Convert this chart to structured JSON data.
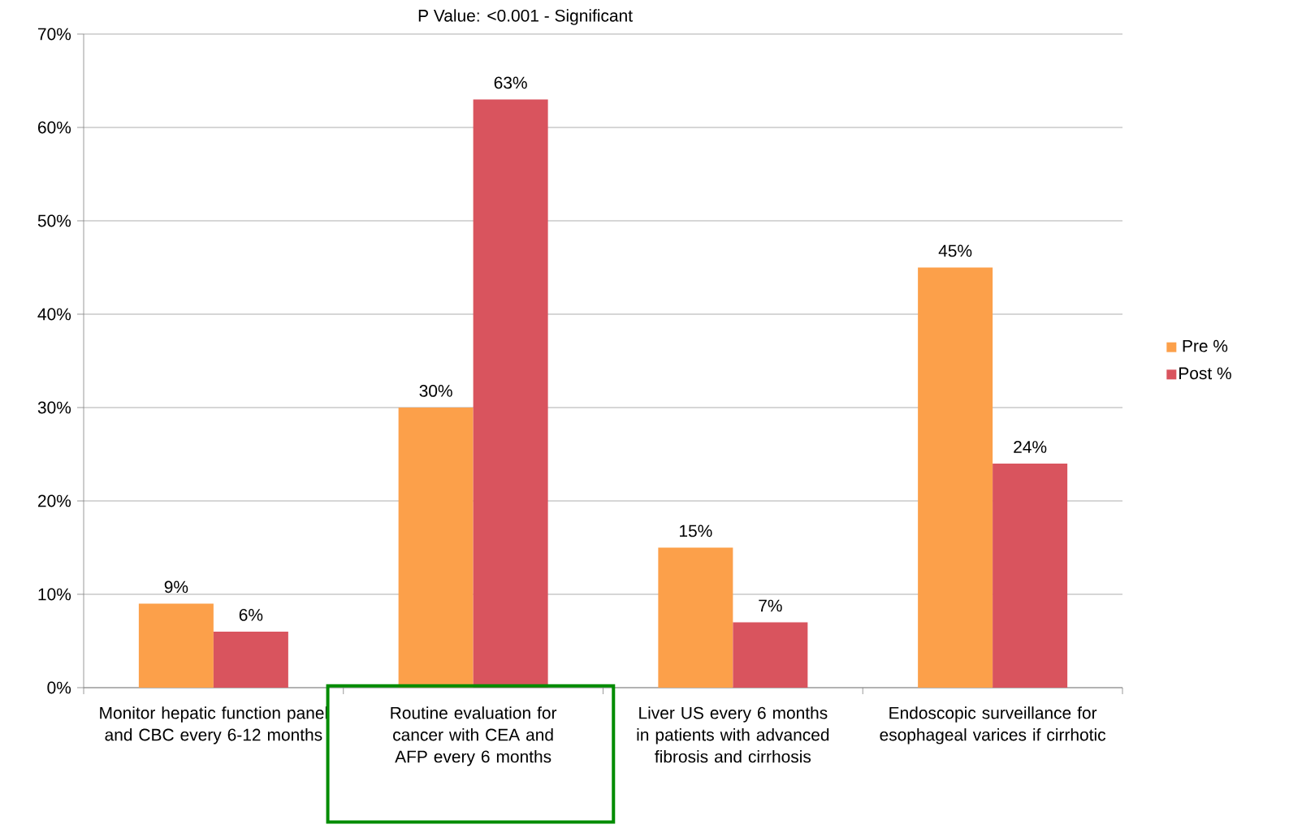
{
  "chart_data": {
    "type": "bar",
    "title": "P Value: <0.001 - Significant",
    "categories": [
      "Monitor hepatic function panel and CBC every 6-12 months",
      "Routine evaluation for cancer with CEA and AFP every 6 months",
      "Liver US every 6 months in patients with advanced fibrosis and cirrhosis",
      "Endoscopic surveillance for esophageal varices if cirrhotic"
    ],
    "series": [
      {
        "name": "Pre %",
        "color": "#fca04a",
        "values": [
          9,
          30,
          15,
          45
        ],
        "value_labels": [
          "9%",
          "30%",
          "15%",
          "45%"
        ]
      },
      {
        "name": "Post %",
        "color": "#d9545e",
        "values": [
          6,
          63,
          7,
          24
        ],
        "value_labels": [
          "6%",
          "63%",
          "7%",
          "24%"
        ]
      }
    ],
    "ylim": [
      0,
      70
    ],
    "yticks": [
      {
        "value": 0,
        "label": "0%"
      },
      {
        "value": 10,
        "label": "10%"
      },
      {
        "value": 20,
        "label": "20%"
      },
      {
        "value": 30,
        "label": "30%"
      },
      {
        "value": 40,
        "label": "40%"
      },
      {
        "value": 50,
        "label": "50%"
      },
      {
        "value": 60,
        "label": "60%"
      },
      {
        "value": 70,
        "label": "70%"
      }
    ],
    "grid": "y",
    "legend": "right"
  }
}
